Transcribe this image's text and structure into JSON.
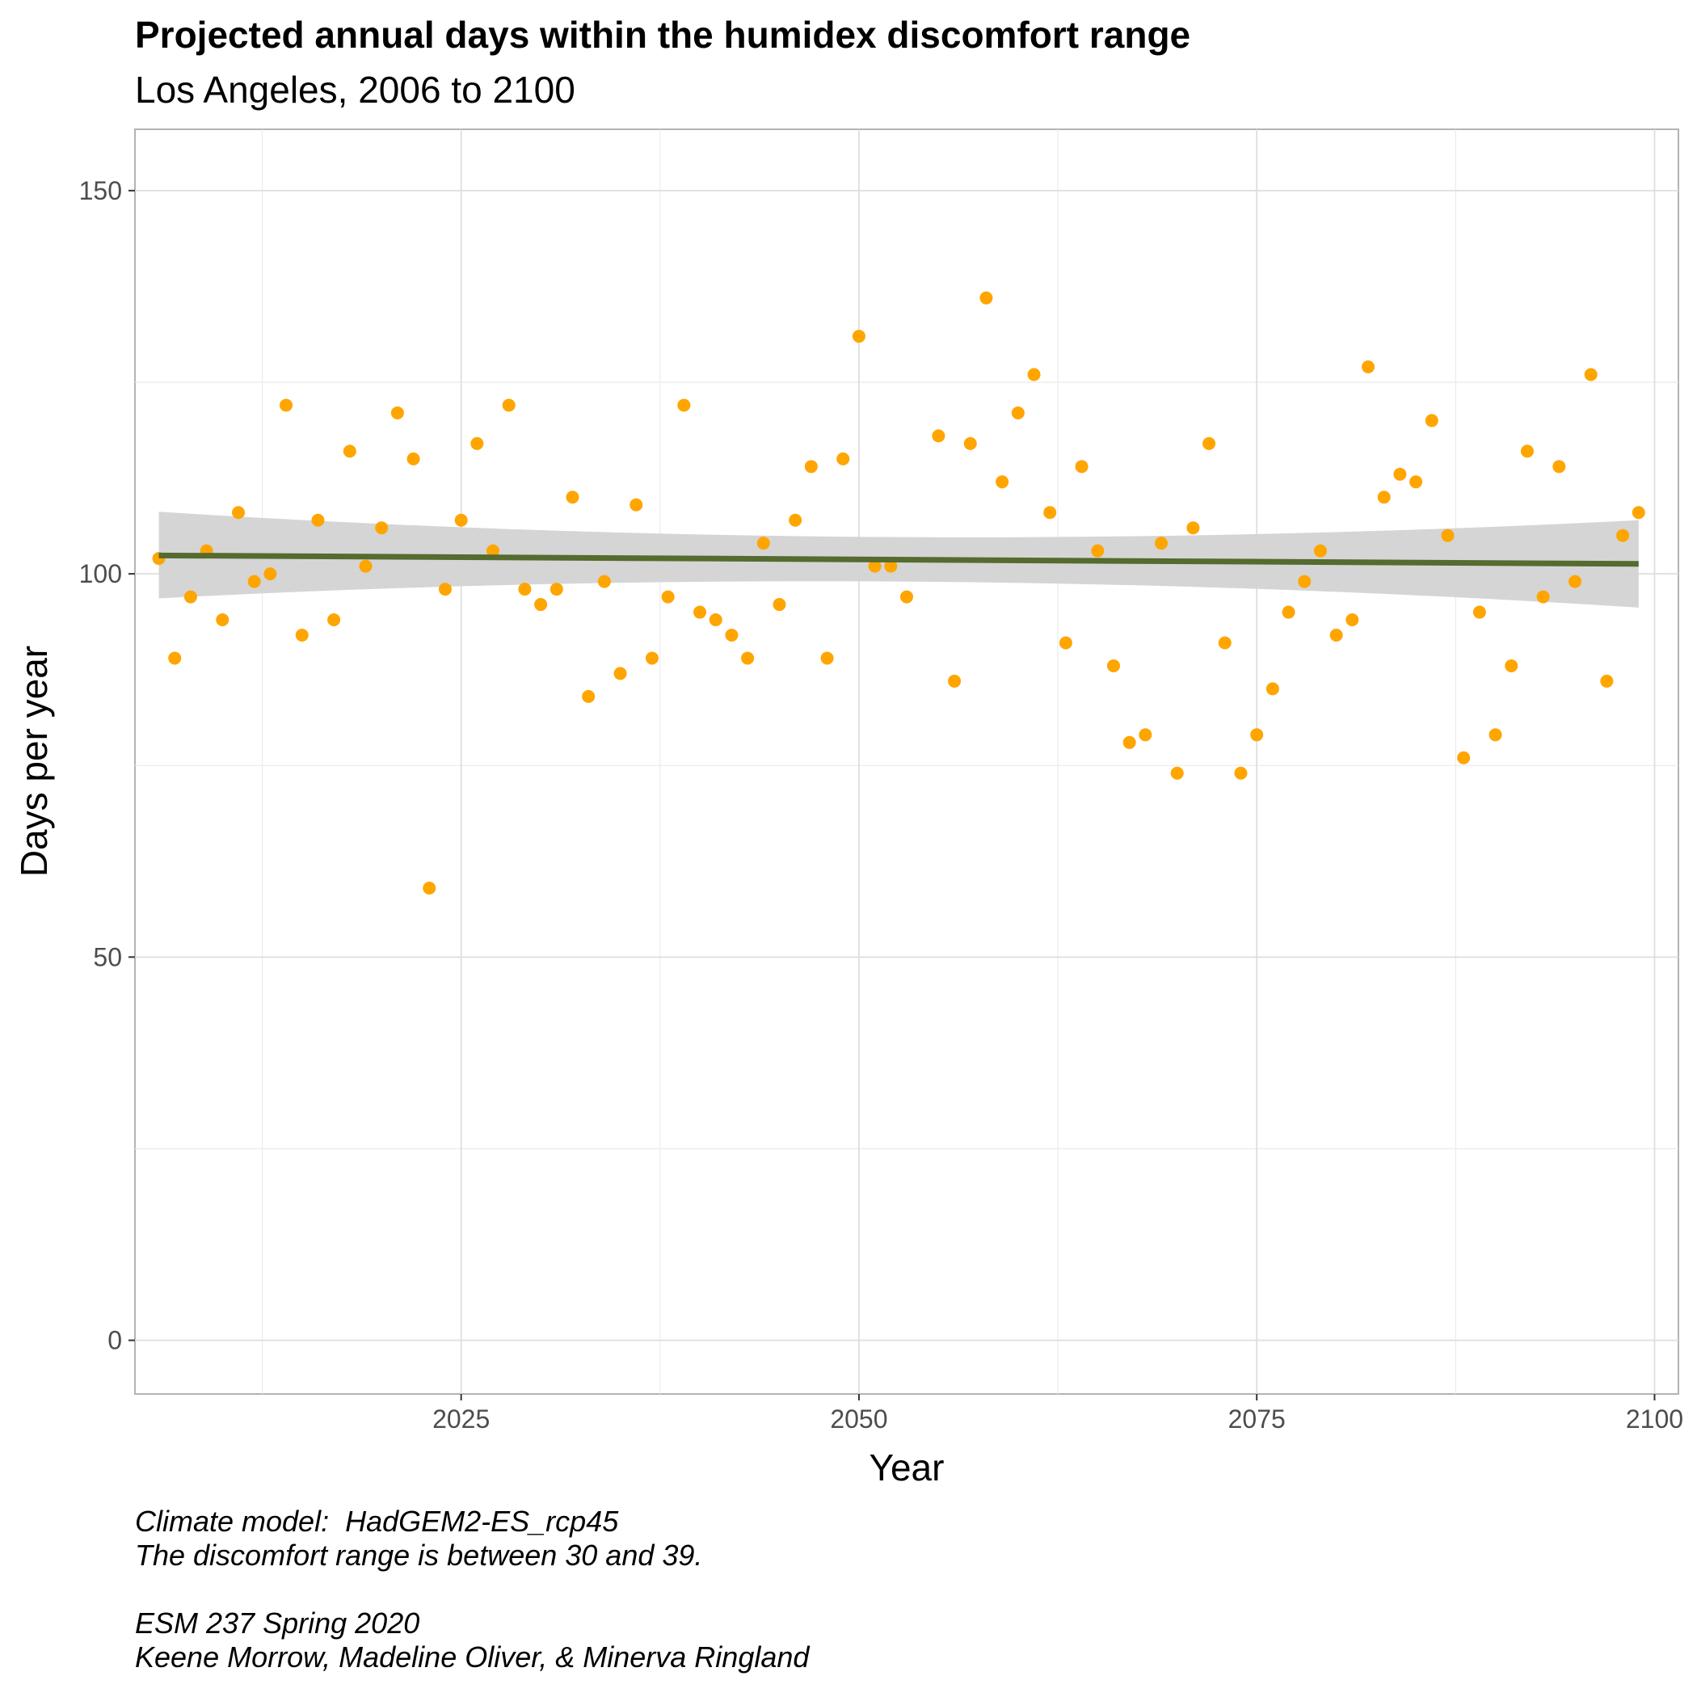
{
  "chart_data": {
    "type": "scatter",
    "title": "Projected annual days within the humidex discomfort range",
    "subtitle": "Los Angeles, 2006 to 2100",
    "xlabel": "Year",
    "ylabel": "Days per year",
    "xlim": [
      2004.5,
      2101.5
    ],
    "ylim": [
      -7,
      158
    ],
    "x_ticks": [
      2025,
      2050,
      2075,
      2100
    ],
    "y_ticks": [
      0,
      50,
      100,
      150
    ],
    "grid": true,
    "legend": "none",
    "point_color": "#FFA500",
    "trend_color": "#556B2F",
    "band_color": "#D3D3D3",
    "series": [
      {
        "x": [
          2006,
          2007,
          2008,
          2009,
          2010,
          2011,
          2012,
          2013,
          2014,
          2015,
          2016,
          2017,
          2018,
          2019,
          2020,
          2021,
          2022,
          2023,
          2024,
          2025,
          2026,
          2027,
          2028,
          2029,
          2030,
          2031,
          2032,
          2033,
          2034,
          2035,
          2036,
          2037,
          2038,
          2039,
          2040,
          2041,
          2042,
          2043,
          2044,
          2045,
          2046,
          2047,
          2048,
          2049,
          2050,
          2051,
          2052,
          2053,
          2055,
          2056,
          2057,
          2058,
          2059,
          2060,
          2061,
          2062,
          2063,
          2064,
          2065,
          2066,
          2067,
          2068,
          2069,
          2070,
          2071,
          2072,
          2073,
          2074,
          2075,
          2076,
          2077,
          2078,
          2079,
          2080,
          2081,
          2082,
          2083,
          2084,
          2085,
          2086,
          2087,
          2088,
          2089,
          2090,
          2091,
          2092,
          2093,
          2094,
          2095,
          2096,
          2097,
          2098,
          2099
        ],
        "values": [
          102,
          89,
          97,
          103,
          94,
          108,
          99,
          100,
          122,
          92,
          107,
          94,
          116,
          101,
          106,
          121,
          115,
          59,
          98,
          107,
          117,
          103,
          122,
          98,
          96,
          98,
          110,
          84,
          99,
          87,
          109,
          89,
          97,
          122,
          95,
          94,
          92,
          89,
          104,
          96,
          107,
          114,
          89,
          115,
          131,
          101,
          101,
          97,
          118,
          86,
          117,
          136,
          112,
          121,
          126,
          108,
          91,
          114,
          103,
          88,
          78,
          79,
          104,
          74,
          106,
          117,
          91,
          74,
          79,
          85,
          95,
          99,
          103,
          92,
          94,
          127,
          110,
          113,
          112,
          120,
          105,
          76,
          95,
          79,
          88,
          116,
          97,
          114,
          99,
          126,
          86,
          105,
          108
        ]
      }
    ],
    "trend": {
      "x": [
        2006,
        2099
      ],
      "y": [
        102.4,
        101.3
      ],
      "ci_lower": [
        96.8,
        95.6
      ],
      "ci_upper": [
        108.1,
        107.0
      ],
      "ci_mid_x": 2052,
      "ci_mid_lower": [
        99.0
      ],
      "ci_mid_upper": [
        104.8
      ]
    }
  },
  "caption": {
    "line1": "Climate model:  HadGEM2-ES_rcp45",
    "line2": "The discomfort range is between 30 and 39.",
    "line3": "",
    "line4": "ESM 237 Spring 2020",
    "line5": "Keene Morrow, Madeline Oliver, & Minerva Ringland"
  }
}
